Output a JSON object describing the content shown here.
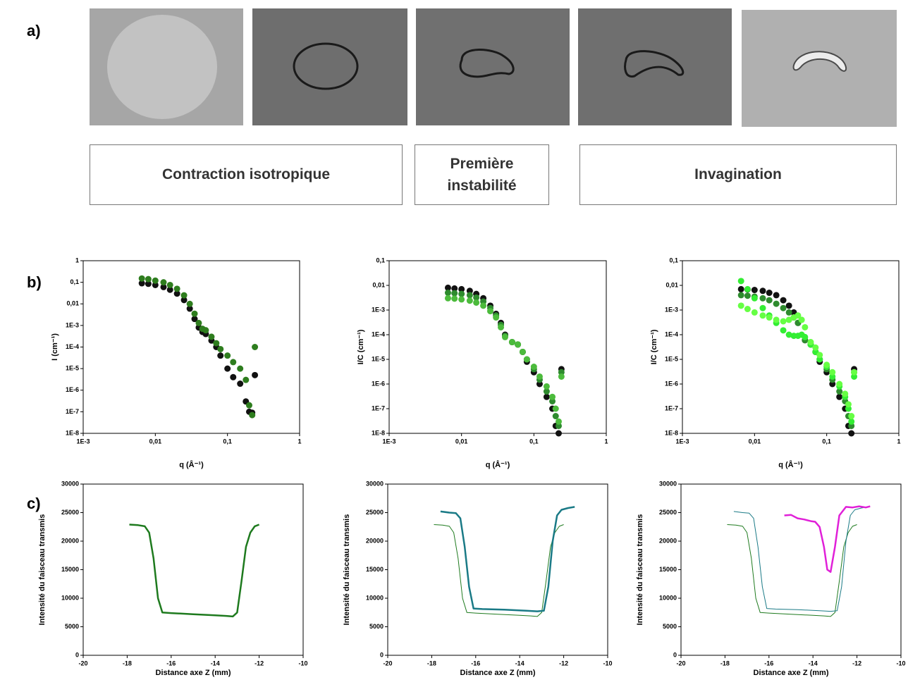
{
  "panel_labels": [
    "a)",
    "b)",
    "c)"
  ],
  "stages": [
    "Contraction isotropique",
    "Première instabilité",
    "Invagination"
  ],
  "chart_data": [
    {
      "type": "scatter",
      "xlabel": "q (Å⁻¹)",
      "ylabel": "I (cm⁻¹)",
      "xlog": true,
      "ylog": true,
      "xlim": [
        0.001,
        1
      ],
      "ylim": [
        1e-08,
        1
      ],
      "xticks": [
        {
          "value": 0.001,
          "label": "1E-3"
        },
        {
          "value": 0.01,
          "label": "0,01"
        },
        {
          "value": 0.1,
          "label": "0,1"
        },
        1
      ],
      "yticks": [
        {
          "value": 1e-08,
          "label": "1E-8"
        },
        {
          "value": 1e-07,
          "label": "1E-7"
        },
        {
          "value": 1e-06,
          "label": "1E-6"
        },
        {
          "value": 1e-05,
          "label": "1E-5"
        },
        {
          "value": 0.0001,
          "label": "1E-4"
        },
        {
          "value": 0.001,
          "label": "1E-3"
        },
        {
          "value": 0.01,
          "label": "0,01"
        },
        {
          "value": 0.1,
          "label": "0,1"
        },
        1
      ],
      "series": [
        {
          "color": "#111111",
          "x": [
            0.0065,
            0.008,
            0.01,
            0.013,
            0.016,
            0.02,
            0.025,
            0.03,
            0.035,
            0.04,
            0.045,
            0.05,
            0.06,
            0.07,
            0.08,
            0.1,
            0.12,
            0.15,
            0.18,
            0.2,
            0.22,
            0.24
          ],
          "values": [
            0.09,
            0.085,
            0.075,
            0.06,
            0.045,
            0.03,
            0.015,
            0.006,
            0.002,
            0.0008,
            0.0005,
            0.0004,
            0.0002,
            0.0001,
            4e-05,
            1e-05,
            4e-06,
            2e-06,
            3e-07,
            1e-07,
            9e-08,
            5e-06
          ]
        },
        {
          "color": "#2e7d1e",
          "x": [
            0.0065,
            0.008,
            0.01,
            0.013,
            0.016,
            0.02,
            0.025,
            0.03,
            0.035,
            0.04,
            0.045,
            0.05,
            0.06,
            0.07,
            0.08,
            0.1,
            0.12,
            0.15,
            0.18,
            0.2,
            0.22,
            0.24
          ],
          "values": [
            0.15,
            0.14,
            0.12,
            0.1,
            0.075,
            0.05,
            0.025,
            0.01,
            0.0035,
            0.0013,
            0.0007,
            0.0006,
            0.0003,
            0.00015,
            8e-05,
            4e-05,
            2e-05,
            1e-05,
            3e-06,
            2e-07,
            7e-08,
            0.0001
          ]
        }
      ]
    },
    {
      "type": "scatter",
      "xlabel": "q (Å⁻¹)",
      "ylabel": "I/C (cm⁻¹)",
      "xlog": true,
      "ylog": true,
      "xlim": [
        0.001,
        1
      ],
      "ylim": [
        1e-08,
        0.1
      ],
      "xticks": [
        {
          "value": 0.001,
          "label": "1E-3"
        },
        {
          "value": 0.01,
          "label": "0,01"
        },
        {
          "value": 0.1,
          "label": "0,1"
        },
        1
      ],
      "yticks": [
        {
          "value": 1e-08,
          "label": "1E-8"
        },
        {
          "value": 1e-07,
          "label": "1E-7"
        },
        {
          "value": 1e-06,
          "label": "1E-6"
        },
        {
          "value": 1e-05,
          "label": "1E-5"
        },
        {
          "value": 0.0001,
          "label": "1E-4"
        },
        {
          "value": 0.001,
          "label": "1E-3"
        },
        {
          "value": 0.01,
          "label": "0,01"
        },
        {
          "value": 0.1,
          "label": "0,1"
        }
      ],
      "series": [
        {
          "color": "#111111",
          "x": [
            0.0065,
            0.008,
            0.01,
            0.013,
            0.016,
            0.02,
            0.025,
            0.03,
            0.035,
            0.04,
            0.05,
            0.06,
            0.07,
            0.08,
            0.1,
            0.12,
            0.15,
            0.18,
            0.2,
            0.22,
            0.24
          ],
          "values": [
            0.008,
            0.0075,
            0.007,
            0.006,
            0.0045,
            0.003,
            0.0015,
            0.0007,
            0.0003,
            0.0001,
            5e-05,
            4e-05,
            2e-05,
            8e-06,
            3e-06,
            1e-06,
            3e-07,
            1e-07,
            2e-08,
            1e-08,
            4e-06
          ]
        },
        {
          "color": "#2e8b2e",
          "x": [
            0.0065,
            0.008,
            0.01,
            0.013,
            0.016,
            0.02,
            0.025,
            0.03,
            0.035,
            0.04,
            0.05,
            0.06,
            0.07,
            0.08,
            0.1,
            0.12,
            0.15,
            0.18,
            0.2,
            0.22,
            0.24
          ],
          "values": [
            0.005,
            0.0048,
            0.0045,
            0.004,
            0.0032,
            0.0022,
            0.0012,
            0.0006,
            0.00025,
            9e-05,
            5e-05,
            4e-05,
            2e-05,
            1e-05,
            4e-06,
            1.5e-06,
            5e-07,
            2e-07,
            5e-08,
            2e-08,
            3e-06
          ]
        },
        {
          "color": "#4cbb3c",
          "x": [
            0.0065,
            0.008,
            0.01,
            0.013,
            0.016,
            0.02,
            0.025,
            0.03,
            0.035,
            0.04,
            0.05,
            0.06,
            0.07,
            0.08,
            0.1,
            0.12,
            0.15,
            0.18,
            0.2,
            0.22,
            0.24
          ],
          "values": [
            0.003,
            0.0029,
            0.0027,
            0.0024,
            0.002,
            0.0015,
            0.0009,
            0.0005,
            0.0002,
            8e-05,
            5e-05,
            4e-05,
            2e-05,
            1e-05,
            5e-06,
            2e-06,
            8e-07,
            3e-07,
            1e-07,
            3e-08,
            2e-06
          ]
        }
      ]
    },
    {
      "type": "scatter",
      "xlabel": "q (Å⁻¹)",
      "ylabel": "I/C (cm⁻¹)",
      "xlog": true,
      "ylog": true,
      "xlim": [
        0.001,
        1
      ],
      "ylim": [
        1e-08,
        0.1
      ],
      "xticks": [
        {
          "value": 0.001,
          "label": "1E-3"
        },
        {
          "value": 0.01,
          "label": "0,01"
        },
        {
          "value": 0.1,
          "label": "0,1"
        },
        1
      ],
      "yticks": [
        {
          "value": 1e-08,
          "label": "1E-8"
        },
        {
          "value": 1e-07,
          "label": "1E-7"
        },
        {
          "value": 1e-06,
          "label": "1E-6"
        },
        {
          "value": 1e-05,
          "label": "1E-5"
        },
        {
          "value": 0.0001,
          "label": "1E-4"
        },
        {
          "value": 0.001,
          "label": "1E-3"
        },
        {
          "value": 0.01,
          "label": "0,01"
        },
        {
          "value": 0.1,
          "label": "0,1"
        }
      ],
      "series": [
        {
          "color": "#111111",
          "x": [
            0.0065,
            0.008,
            0.01,
            0.013,
            0.016,
            0.02,
            0.025,
            0.03,
            0.035,
            0.04,
            0.05,
            0.06,
            0.07,
            0.08,
            0.1,
            0.12,
            0.15,
            0.18,
            0.2,
            0.22,
            0.24
          ],
          "values": [
            0.007,
            0.0068,
            0.0065,
            0.006,
            0.005,
            0.004,
            0.0025,
            0.0015,
            0.0008,
            0.0003,
            6e-05,
            4e-05,
            2e-05,
            8e-06,
            3e-06,
            1e-06,
            3e-07,
            1e-07,
            2e-08,
            1e-08,
            4e-06
          ]
        },
        {
          "color": "#2e8b2e",
          "x": [
            0.0065,
            0.008,
            0.01,
            0.013,
            0.016,
            0.02,
            0.025,
            0.03,
            0.035,
            0.04,
            0.05,
            0.06,
            0.07,
            0.08,
            0.1,
            0.12,
            0.15,
            0.18,
            0.2,
            0.22,
            0.24
          ],
          "values": [
            0.004,
            0.0038,
            0.0035,
            0.003,
            0.0025,
            0.0018,
            0.0012,
            0.0008,
            0.0005,
            0.0003,
            6e-05,
            4e-05,
            2e-05,
            1e-05,
            4e-06,
            1.5e-06,
            5e-07,
            2e-07,
            5e-08,
            2e-08,
            3e-06
          ]
        },
        {
          "color": "#33ee33",
          "x": [
            0.0065,
            0.008,
            0.01,
            0.013,
            0.016,
            0.02,
            0.025,
            0.03,
            0.035,
            0.04,
            0.045,
            0.05,
            0.06,
            0.07,
            0.08,
            0.1,
            0.12,
            0.15,
            0.18,
            0.2,
            0.22,
            0.24
          ],
          "values": [
            0.015,
            0.007,
            0.003,
            0.0012,
            0.0006,
            0.0003,
            0.00015,
            0.0001,
            9e-05,
            9e-05,
            0.0001,
            8e-05,
            4e-05,
            2e-05,
            1e-05,
            5e-06,
            2e-06,
            8e-07,
            3e-07,
            1e-07,
            3e-08,
            2e-06
          ]
        },
        {
          "color": "#66ff44",
          "x": [
            0.0065,
            0.008,
            0.01,
            0.013,
            0.016,
            0.02,
            0.025,
            0.03,
            0.035,
            0.04,
            0.045,
            0.05,
            0.06,
            0.07,
            0.08,
            0.1,
            0.12,
            0.15,
            0.18,
            0.2,
            0.22,
            0.24
          ],
          "values": [
            0.0015,
            0.0011,
            0.0008,
            0.0006,
            0.0005,
            0.0004,
            0.00035,
            0.0004,
            0.0005,
            0.0006,
            0.0004,
            0.0002,
            5e-05,
            3e-05,
            1.5e-05,
            6e-06,
            3e-06,
            1e-06,
            4e-07,
            1.5e-07,
            5e-08,
            3e-06
          ]
        }
      ]
    },
    {
      "type": "line",
      "xlabel": "Distance axe Z (mm)",
      "ylabel": "Intensité du faisceau transmis",
      "xlim": [
        -20,
        -10
      ],
      "ylim": [
        0,
        30000
      ],
      "xticks": [
        -20,
        -18,
        -16,
        -14,
        -12,
        -10
      ],
      "yticks": [
        0,
        5000,
        10000,
        15000,
        20000,
        25000,
        30000
      ],
      "series": [
        {
          "color": "#1e7a1e",
          "width": 2.5,
          "x": [
            -17.9,
            -17.5,
            -17.2,
            -17,
            -16.8,
            -16.6,
            -16.4,
            -16,
            -15,
            -14,
            -13.5,
            -13.2,
            -13,
            -12.8,
            -12.6,
            -12.4,
            -12.2,
            -12
          ],
          "values": [
            22900,
            22800,
            22600,
            21500,
            17000,
            10000,
            7500,
            7400,
            7200,
            7000,
            6900,
            6800,
            7500,
            13000,
            19000,
            21500,
            22600,
            22900
          ]
        }
      ]
    },
    {
      "type": "line",
      "xlabel": "Distance axe Z (mm)",
      "ylabel": "Intensité du faisceau transmis",
      "xlim": [
        -20,
        -10
      ],
      "ylim": [
        0,
        30000
      ],
      "xticks": [
        -20,
        -18,
        -16,
        -14,
        -12,
        -10
      ],
      "yticks": [
        0,
        5000,
        10000,
        15000,
        20000,
        25000,
        30000
      ],
      "series": [
        {
          "color": "#1e7a1e",
          "width": 1,
          "x": [
            -17.9,
            -17.5,
            -17.2,
            -17,
            -16.8,
            -16.6,
            -16.4,
            -16,
            -15,
            -14,
            -13.5,
            -13.2,
            -13,
            -12.8,
            -12.6,
            -12.4,
            -12.2,
            -12
          ],
          "values": [
            22900,
            22800,
            22600,
            21500,
            17000,
            10000,
            7500,
            7400,
            7200,
            7000,
            6900,
            6800,
            7500,
            13000,
            19000,
            21500,
            22600,
            22900
          ]
        },
        {
          "color": "#1a7a86",
          "width": 2.5,
          "x": [
            -17.6,
            -17.2,
            -16.9,
            -16.7,
            -16.5,
            -16.3,
            -16.1,
            -15.7,
            -14.7,
            -13.7,
            -13.2,
            -12.9,
            -12.7,
            -12.5,
            -12.3,
            -12.1,
            -11.8,
            -11.5
          ],
          "values": [
            25200,
            25000,
            24900,
            24000,
            19000,
            12000,
            8200,
            8100,
            8000,
            7800,
            7700,
            7800,
            12000,
            20000,
            24500,
            25500,
            25800,
            26000
          ]
        }
      ]
    },
    {
      "type": "line",
      "xlabel": "Distance axe Z (mm)",
      "ylabel": "Intensité du faisceau transmis",
      "xlim": [
        -20,
        -10
      ],
      "ylim": [
        0,
        30000
      ],
      "xticks": [
        -20,
        -18,
        -16,
        -14,
        -12,
        -10
      ],
      "yticks": [
        0,
        5000,
        10000,
        15000,
        20000,
        25000,
        30000
      ],
      "series": [
        {
          "color": "#1e7a1e",
          "width": 1,
          "x": [
            -17.9,
            -17.5,
            -17.2,
            -17,
            -16.8,
            -16.6,
            -16.4,
            -16,
            -15,
            -14,
            -13.5,
            -13.2,
            -13,
            -12.8,
            -12.6,
            -12.4,
            -12.2,
            -12
          ],
          "values": [
            22900,
            22800,
            22600,
            21500,
            17000,
            10000,
            7500,
            7400,
            7200,
            7000,
            6900,
            6800,
            7500,
            13000,
            19000,
            21500,
            22600,
            22900
          ]
        },
        {
          "color": "#1a7a86",
          "width": 1,
          "x": [
            -17.6,
            -17.2,
            -16.9,
            -16.7,
            -16.5,
            -16.3,
            -16.1,
            -15.7,
            -14.7,
            -13.7,
            -13.2,
            -12.9,
            -12.7,
            -12.5,
            -12.3,
            -12.1,
            -11.8,
            -11.5
          ],
          "values": [
            25200,
            25000,
            24900,
            24000,
            19000,
            12000,
            8200,
            8100,
            8000,
            7800,
            7700,
            7800,
            12000,
            20000,
            24500,
            25500,
            25800,
            26000
          ]
        },
        {
          "color": "#e020d8",
          "width": 2.5,
          "x": [
            -15.3,
            -15,
            -14.7,
            -14.4,
            -14.1,
            -13.9,
            -13.7,
            -13.5,
            -13.35,
            -13.2,
            -13,
            -12.8,
            -12.5,
            -12.2,
            -11.9,
            -11.6,
            -11.4
          ],
          "values": [
            24500,
            24600,
            24000,
            23800,
            23500,
            23400,
            22500,
            19000,
            15000,
            14600,
            19000,
            24500,
            26000,
            25900,
            26100,
            25900,
            26100
          ]
        }
      ]
    }
  ]
}
